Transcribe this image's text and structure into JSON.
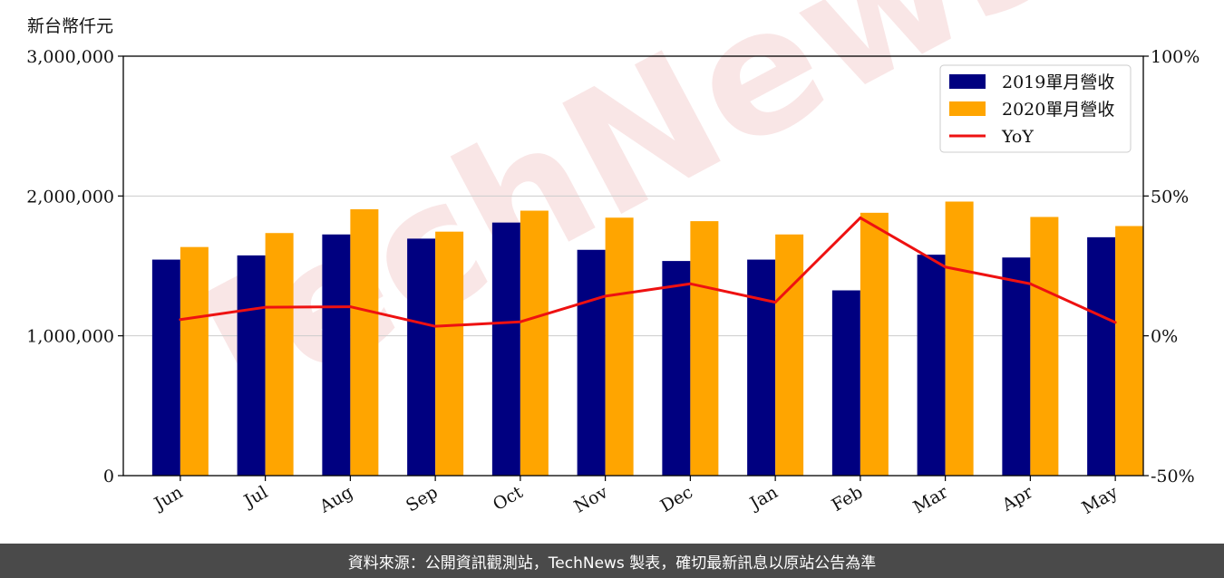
{
  "watermark": "TechNews",
  "unit_label": "新台幣仟元",
  "footer": "資料來源：公開資訊觀測站，TechNews 製表，確切最新訊息以原站公告為準",
  "colors": {
    "bar2019": "#000080",
    "bar2020": "#FFA500",
    "yoy": "#EE1111",
    "grid": "#cccccc"
  },
  "chart_data": {
    "type": "bar",
    "categories": [
      "Jun",
      "Jul",
      "Aug",
      "Sep",
      "Oct",
      "Nov",
      "Dec",
      "Jan",
      "Feb",
      "Mar",
      "Apr",
      "May"
    ],
    "series": [
      {
        "name": "2019單月營收",
        "type": "bar",
        "axis": "left",
        "values": [
          1545000,
          1575000,
          1725000,
          1695000,
          1810000,
          1615000,
          1535000,
          1545000,
          1325000,
          1580000,
          1560000,
          1705000
        ]
      },
      {
        "name": "2020單月營收",
        "type": "bar",
        "axis": "left",
        "values": [
          1635000,
          1735000,
          1905000,
          1745000,
          1895000,
          1845000,
          1820000,
          1725000,
          1880000,
          1960000,
          1850000,
          1785000
        ]
      },
      {
        "name": "YoY",
        "type": "line",
        "axis": "right",
        "values": [
          5.8,
          10.2,
          10.4,
          3.4,
          5.0,
          14.2,
          18.6,
          12.0,
          42.2,
          24.6,
          18.6,
          4.8
        ]
      }
    ],
    "ylim": [
      0,
      3000000
    ],
    "y_ticks": [
      "0",
      "1,000,000",
      "2,000,000",
      "3,000,000"
    ],
    "y2lim": [
      -50,
      100
    ],
    "y2_ticks": [
      "-50%",
      "0%",
      "50%",
      "100%"
    ],
    "grid": "horizontal",
    "legend_position": "top-right"
  }
}
